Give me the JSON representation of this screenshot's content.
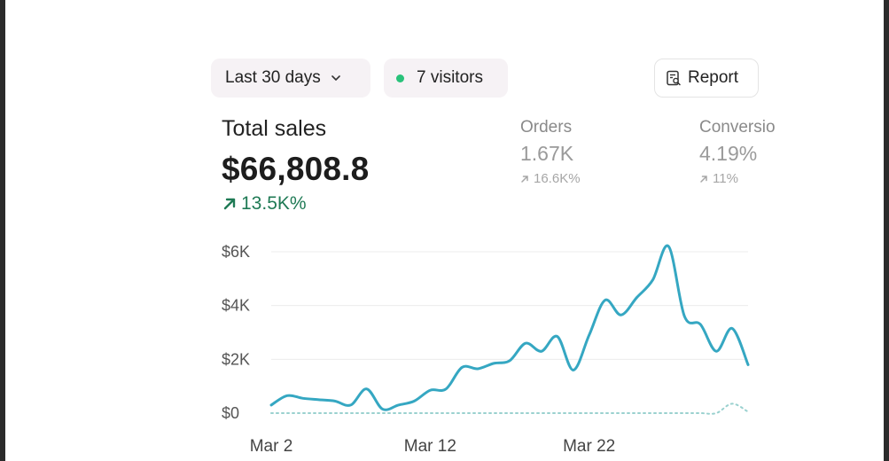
{
  "filters": {
    "date_range": "Last 30 days",
    "visitors": "7 visitors",
    "report_label": "Report"
  },
  "summary": {
    "total_sales_label": "Total sales",
    "total_sales_value": "$66,808.8",
    "total_sales_change": "13.5K%",
    "orders_label": "Orders",
    "orders_value": "1.67K",
    "orders_change": "16.6K%",
    "conversion_label": "Conversio",
    "conversion_value": "4.19%",
    "conversion_change": "11%"
  },
  "colors": {
    "accent": "#35a7c2",
    "positive": "#1f7a55",
    "status_dot": "#29c27a",
    "comparison": "#9ad1cf"
  },
  "chart_data": {
    "type": "line",
    "x_tick_labels": [
      "Mar 2",
      "Mar 12",
      "Mar 22"
    ],
    "y_tick_labels": [
      "$0",
      "$2K",
      "$4K",
      "$6K"
    ],
    "ylim": [
      0,
      6000
    ],
    "grid": true,
    "series": [
      {
        "values": [
          300,
          650,
          550,
          500,
          450,
          300,
          900,
          150,
          300,
          450,
          850,
          900,
          1700,
          1650,
          1850,
          1950,
          2600,
          2300,
          2850,
          1600,
          2900,
          4200,
          3650,
          4300,
          4950,
          6200,
          3600,
          3300,
          2300,
          3150,
          1800
        ]
      },
      {
        "values": [
          0,
          0,
          0,
          0,
          0,
          0,
          0,
          0,
          0,
          0,
          0,
          0,
          0,
          0,
          0,
          0,
          0,
          0,
          0,
          0,
          0,
          0,
          0,
          0,
          0,
          0,
          0,
          0,
          0,
          350,
          50
        ]
      }
    ]
  }
}
